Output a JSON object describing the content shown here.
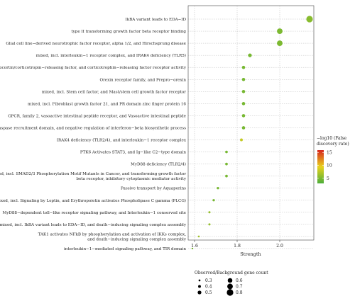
{
  "chart_data": {
    "type": "scatter",
    "xlabel": "Strength",
    "xlim": [
      1.57,
      2.16
    ],
    "xticks": [
      1.6,
      1.8,
      2.0
    ],
    "grid": true,
    "categories": [
      {
        "label": [
          "IkBA variant leads to EDA−ID"
        ],
        "strength": 2.14,
        "ratio": 0.8,
        "fdr": 5.5
      },
      {
        "label": [
          "type II transforming growth factor beta receptor binding"
        ],
        "strength": 2.0,
        "ratio": 0.7,
        "fdr": 5.0
      },
      {
        "label": [
          "Glial cell line−derived neurotrophic factor receptor, alpha 1/2, and Hirschsprung disease"
        ],
        "strength": 2.0,
        "ratio": 0.7,
        "fdr": 5.0
      },
      {
        "label": [
          "mixed, incl. interleukin−1 receptor complex, and IRAK4 deficiency (TLR5)"
        ],
        "strength": 1.86,
        "ratio": 0.5,
        "fdr": 4.8
      },
      {
        "label": [
          "Urocortin/corticotropin−releasing factor, and corticotrophin−releasing factor receptor activity"
        ],
        "strength": 1.83,
        "ratio": 0.45,
        "fdr": 4.8
      },
      {
        "label": [
          "Orexin receptor family, and Prepro−orexin"
        ],
        "strength": 1.83,
        "ratio": 0.45,
        "fdr": 4.8
      },
      {
        "label": [
          "mixed, incl. Stem cell factor, and Mast/stem cell growth factor receptor"
        ],
        "strength": 1.83,
        "ratio": 0.45,
        "fdr": 4.8
      },
      {
        "label": [
          "mixed, incl. Fibroblast growth factor 21, and PR domain zinc finger protein 16"
        ],
        "strength": 1.83,
        "ratio": 0.45,
        "fdr": 4.8
      },
      {
        "label": [
          "GPCR, family 2, vasoactive intestinal peptide receptor, and Vasoactive intestinal peptide"
        ],
        "strength": 1.83,
        "ratio": 0.45,
        "fdr": 4.8
      },
      {
        "label": [
          "Caspase recruitment domain, and negative regulation of interferon−beta biosynthetic process"
        ],
        "strength": 1.83,
        "ratio": 0.45,
        "fdr": 4.8
      },
      {
        "label": [
          "IRAK4 deficiency (TLR2/4), and interleukin−1 receptor complex"
        ],
        "strength": 1.82,
        "ratio": 0.4,
        "fdr": 8.0
      },
      {
        "label": [
          "PTK6 Activates STAT3, and Ig−like C2−type domain"
        ],
        "strength": 1.75,
        "ratio": 0.38,
        "fdr": 4.8
      },
      {
        "label": [
          "MyD88 deficiency (TLR2/4)"
        ],
        "strength": 1.75,
        "ratio": 0.38,
        "fdr": 4.8
      },
      {
        "label": [
          "mixed, incl. SMAD2/3 Phosphorylation Motif Mutants in Cancer, and transforming growth factor",
          "beta receptor, inhibitory cytoplasmic mediator activity"
        ],
        "strength": 1.75,
        "ratio": 0.38,
        "fdr": 4.8
      },
      {
        "label": [
          "Passive transport by Aquaporins"
        ],
        "strength": 1.71,
        "ratio": 0.35,
        "fdr": 4.8
      },
      {
        "label": [
          "mixed, incl. Signaling by Leptin, and Erythropoietin activates Phospholipase C gamma (PLCG)"
        ],
        "strength": 1.69,
        "ratio": 0.35,
        "fdr": 4.8
      },
      {
        "label": [
          "MyD88−dependent toll−like receptor signaling pathway, and Interleukin−1 conserved site"
        ],
        "strength": 1.67,
        "ratio": 0.33,
        "fdr": 6.0
      },
      {
        "label": [
          "mixed, incl. IkBA variant leads to EDA−ID, and death−inducing signaling complex assembly"
        ],
        "strength": 1.67,
        "ratio": 0.33,
        "fdr": 6.0
      },
      {
        "label": [
          "TAK1 activates NFkB by phosphorylation and activation of IKKs complex,",
          "and death−inducing signaling complex assembly"
        ],
        "strength": 1.62,
        "ratio": 0.3,
        "fdr": 6.5
      },
      {
        "label": [
          "interleukin−1−mediated signaling pathway, and TIR domain"
        ],
        "strength": 1.59,
        "ratio": 0.28,
        "fdr": 4.8
      }
    ],
    "color_legend": {
      "title_lines": [
        "−log10 (False",
        "discovery rate)"
      ],
      "range": [
        3,
        16
      ],
      "ticks": [
        15,
        10,
        5
      ],
      "colors": [
        "#4cae3a",
        "#e8d21d",
        "#d7261e"
      ]
    },
    "size_legend": {
      "title": "Observed/Background gene count",
      "items": [
        "0.3",
        "0.4",
        "0.5",
        "0.6",
        "0.7",
        "0.8"
      ]
    }
  }
}
